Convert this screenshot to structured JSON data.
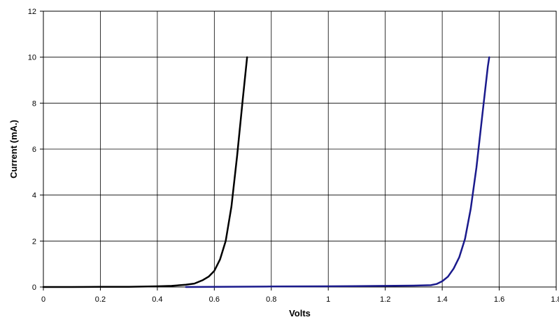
{
  "chart_data": {
    "type": "line",
    "title": "",
    "xlabel": "Volts",
    "ylabel": "Current (mA.)",
    "xlim": [
      0,
      1.8
    ],
    "ylim": [
      0,
      12
    ],
    "xticks": [
      "0",
      "0.2",
      "0.4",
      "0.6",
      "0.8",
      "1",
      "1.2",
      "1.4",
      "1.6",
      "1.8"
    ],
    "yticks": [
      "0",
      "2",
      "4",
      "6",
      "8",
      "10",
      "12"
    ],
    "grid": true,
    "legend": "none",
    "series": [
      {
        "color": "#000000",
        "x": [
          0.0,
          0.1,
          0.2,
          0.3,
          0.4,
          0.45,
          0.5,
          0.53,
          0.56,
          0.58,
          0.6,
          0.62,
          0.64,
          0.66,
          0.68,
          0.7,
          0.715
        ],
        "y": [
          0.0,
          0.0,
          0.01,
          0.01,
          0.03,
          0.05,
          0.1,
          0.15,
          0.3,
          0.45,
          0.7,
          1.2,
          2.0,
          3.5,
          5.7,
          8.2,
          10.0
        ]
      },
      {
        "color": "#1a1a8c",
        "x": [
          0.5,
          0.8,
          1.0,
          1.2,
          1.3,
          1.36,
          1.38,
          1.4,
          1.42,
          1.44,
          1.46,
          1.48,
          1.5,
          1.52,
          1.54,
          1.56,
          1.565
        ],
        "y": [
          0.0,
          0.02,
          0.03,
          0.05,
          0.06,
          0.08,
          0.13,
          0.25,
          0.45,
          0.8,
          1.3,
          2.1,
          3.4,
          5.2,
          7.4,
          9.6,
          10.0
        ]
      }
    ]
  }
}
